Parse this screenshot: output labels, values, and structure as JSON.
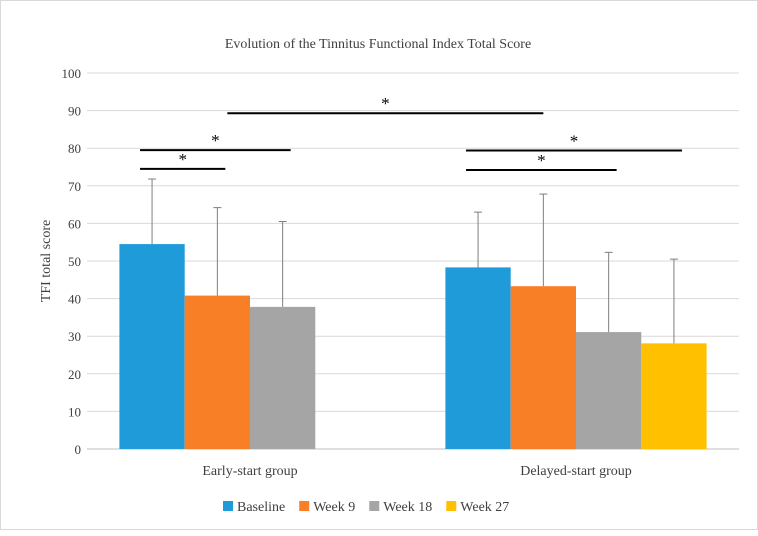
{
  "chart_data": {
    "type": "bar",
    "title": "Evolution of the Tinnitus Functional Index Total Score",
    "ylabel": "TFI total score",
    "xlabel": "",
    "ylim": [
      0,
      100
    ],
    "yticks": [
      0,
      10,
      20,
      30,
      40,
      50,
      60,
      70,
      80,
      90,
      100
    ],
    "grid": true,
    "legend_position": "bottom",
    "categories": [
      "Early-start group",
      "Delayed-start group"
    ],
    "series": [
      {
        "name": "Baseline",
        "color": "#1f9bd9",
        "values": [
          54.5,
          48.3
        ],
        "error_upper": [
          71.8,
          63.0
        ]
      },
      {
        "name": "Week 9",
        "color": "#f97f26",
        "values": [
          40.8,
          43.3
        ],
        "error_upper": [
          64.2,
          67.8
        ]
      },
      {
        "name": "Week 18",
        "color": "#a5a5a5",
        "values": [
          37.8,
          31.1
        ],
        "error_upper": [
          60.5,
          52.3
        ]
      },
      {
        "name": "Week 27",
        "color": "#ffc000",
        "values": [
          null,
          28.1
        ],
        "error_upper": [
          null,
          50.5
        ]
      }
    ],
    "significance": [
      {
        "group": 0,
        "from": 0,
        "to": 1,
        "y": 74.5,
        "label": "*"
      },
      {
        "group": 0,
        "from": 0,
        "to": 2,
        "y": 79.5,
        "label": "*"
      },
      {
        "group": 1,
        "from": 0,
        "to": 2,
        "y": 74.2,
        "label": "*"
      },
      {
        "group": 1,
        "from": 0,
        "to": 3,
        "y": 79.4,
        "label": "*"
      },
      {
        "group": "between",
        "from": 0,
        "to": 0,
        "y": 89.3,
        "label": "*"
      }
    ]
  }
}
